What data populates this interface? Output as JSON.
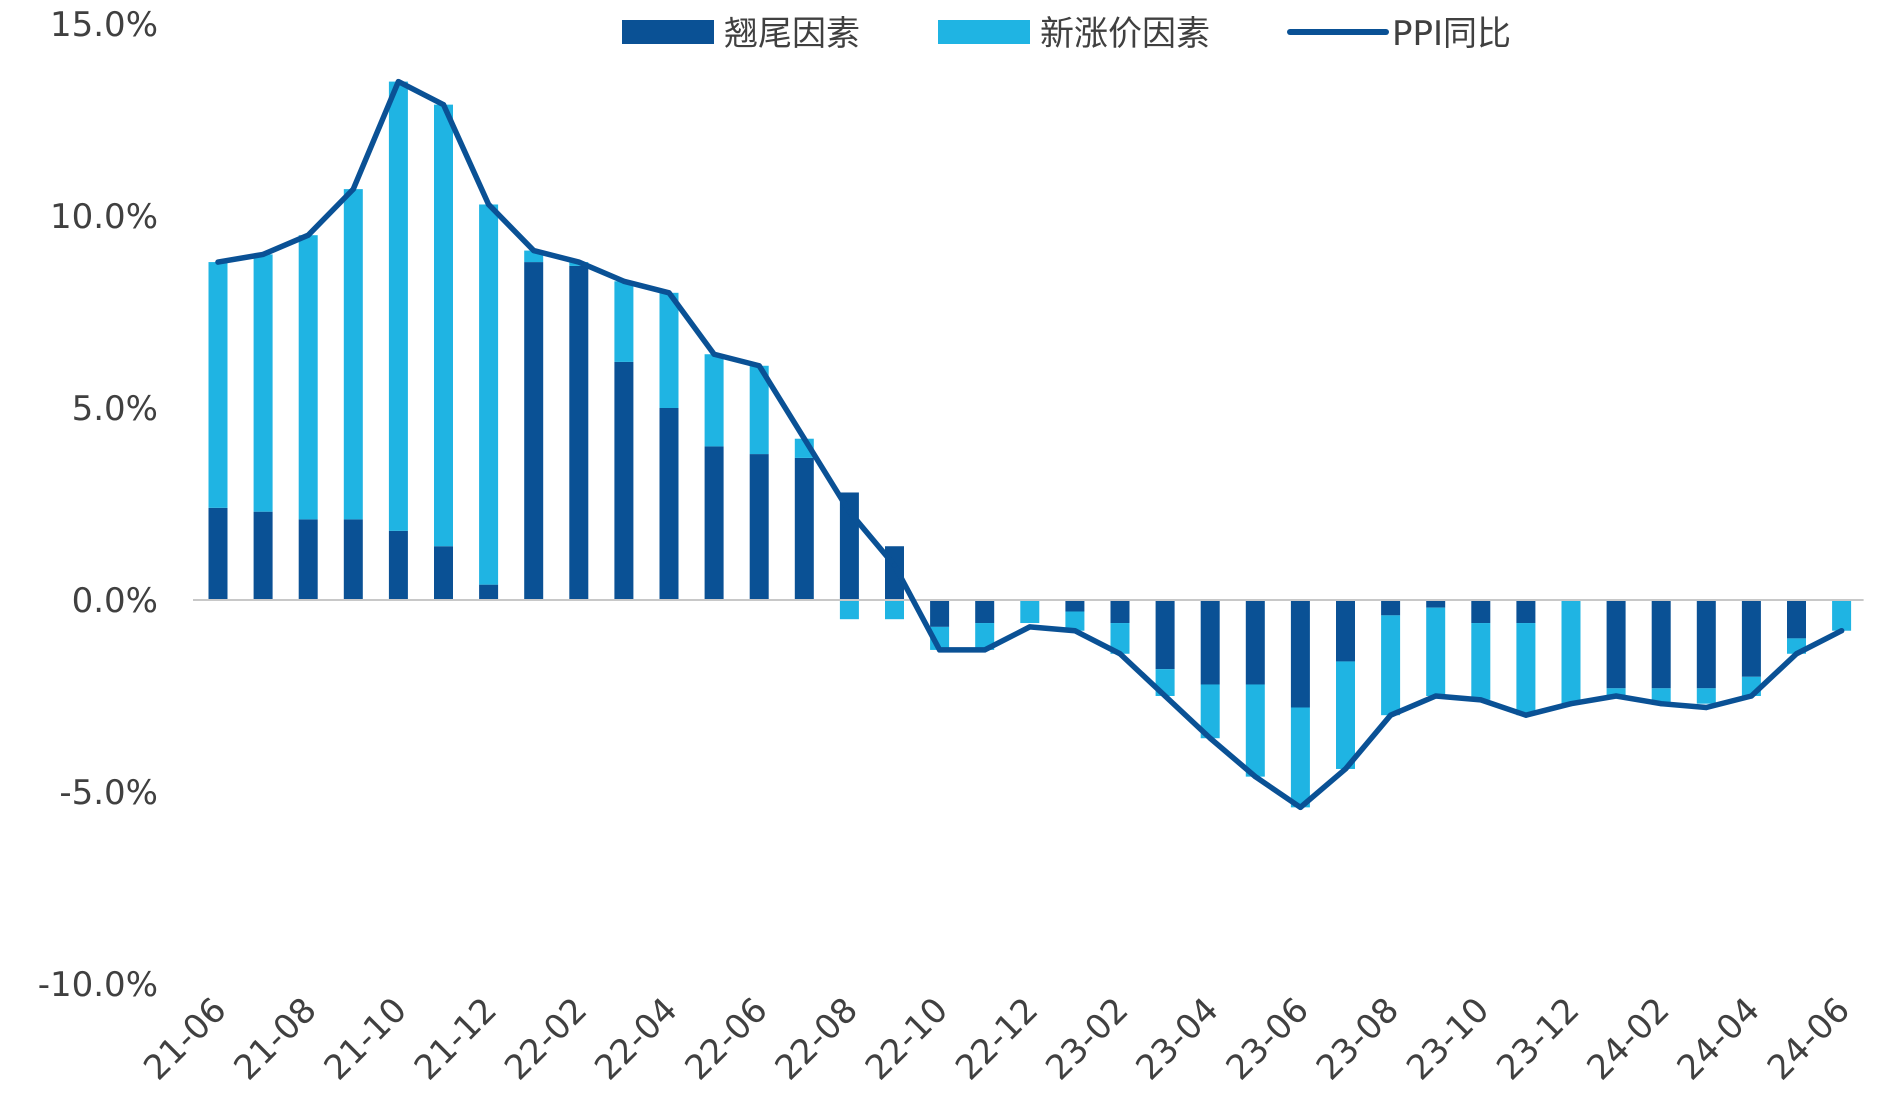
{
  "chart_data": {
    "type": "bar",
    "stacked": true,
    "title": "",
    "xlabel": "",
    "ylabel": "",
    "ylim": [
      -10,
      15
    ],
    "yticks": [
      "15.0%",
      "10.0%",
      "5.0%",
      "0.0%",
      "-5.0%",
      "-10.0%"
    ],
    "ytick_values": [
      15,
      10,
      5,
      0,
      -5,
      -10
    ],
    "categories": [
      "21-06",
      "21-07",
      "21-08",
      "21-09",
      "21-10",
      "21-11",
      "21-12",
      "22-01",
      "22-02",
      "22-03",
      "22-04",
      "22-05",
      "22-06",
      "22-07",
      "22-08",
      "22-09",
      "22-10",
      "22-11",
      "22-12",
      "23-01",
      "23-02",
      "23-03",
      "23-04",
      "23-05",
      "23-06",
      "23-07",
      "23-08",
      "23-09",
      "23-10",
      "23-11",
      "23-12",
      "24-01",
      "24-02",
      "24-03",
      "24-04",
      "24-05",
      "24-06"
    ],
    "xtick_labels": [
      "21-06",
      "21-08",
      "21-10",
      "21-12",
      "22-02",
      "22-04",
      "22-06",
      "22-08",
      "22-10",
      "22-12",
      "23-02",
      "23-04",
      "23-06",
      "23-08",
      "23-10",
      "23-12",
      "24-02",
      "24-04",
      "24-06"
    ],
    "legend_position": "top",
    "series": [
      {
        "name": "翘尾因素",
        "kind": "bar",
        "color": "#0a5195",
        "values": [
          2.4,
          2.3,
          2.1,
          2.1,
          1.8,
          1.4,
          0.4,
          8.8,
          8.7,
          6.2,
          5.0,
          4.0,
          3.8,
          3.7,
          2.8,
          1.4,
          -0.7,
          -0.6,
          0.0,
          -0.3,
          -0.6,
          -1.8,
          -2.2,
          -2.2,
          -2.8,
          -1.6,
          -0.4,
          -0.2,
          -0.6,
          -0.6,
          0.0,
          -2.3,
          -2.3,
          -2.3,
          -2.0,
          -1.0,
          0.0
        ]
      },
      {
        "name": "新涨价因素",
        "kind": "bar",
        "color": "#1fb4e3",
        "values": [
          6.4,
          6.7,
          7.4,
          8.6,
          11.7,
          11.5,
          9.9,
          0.3,
          0.1,
          2.1,
          3.0,
          2.4,
          2.3,
          0.5,
          -0.5,
          -0.5,
          -0.6,
          -0.7,
          -0.6,
          -0.5,
          -0.8,
          -0.7,
          -1.4,
          -2.4,
          -2.6,
          -2.8,
          -2.6,
          -2.3,
          -2.0,
          -2.4,
          -2.7,
          -0.2,
          -0.4,
          -0.4,
          -0.5,
          -0.4,
          -0.8
        ]
      },
      {
        "name": "PPI同比",
        "kind": "line",
        "color": "#0a5195",
        "values": [
          8.8,
          9.0,
          9.5,
          10.7,
          13.5,
          12.9,
          10.3,
          9.1,
          8.8,
          8.3,
          8.0,
          6.4,
          6.1,
          4.2,
          2.3,
          0.9,
          -1.3,
          -1.3,
          -0.7,
          -0.8,
          -1.4,
          -2.5,
          -3.6,
          -4.6,
          -5.4,
          -4.4,
          -3.0,
          -2.5,
          -2.6,
          -3.0,
          -2.7,
          -2.5,
          -2.7,
          -2.8,
          -2.5,
          -1.4,
          -0.8
        ]
      }
    ]
  }
}
